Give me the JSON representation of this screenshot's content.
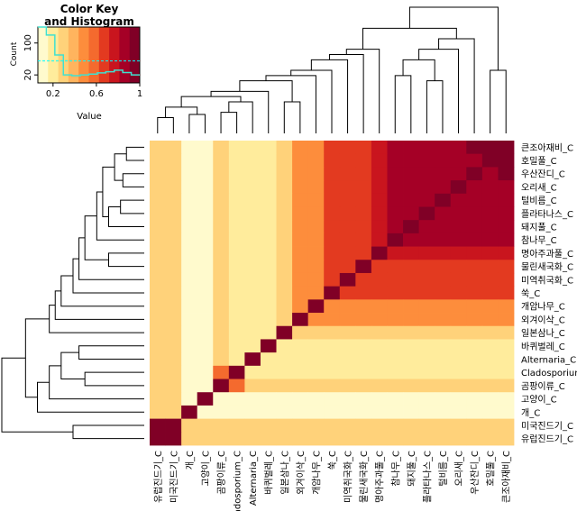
{
  "chart_data": {
    "type": "heatmap",
    "color_key": {
      "title_line1": "Color Key",
      "title_line2": "and Histogram",
      "xlabel": "Value",
      "ylabel": "Count",
      "x_ticks": [
        "0.2",
        "0.6",
        "1"
      ],
      "x_tick_values": [
        0.2,
        0.6,
        1.0
      ],
      "y_ticks": [
        "20",
        "100"
      ],
      "y_tick_values": [
        20,
        100
      ],
      "x_range": [
        0.06,
        1.0
      ],
      "y_range": [
        0,
        140
      ],
      "palette": [
        "#fffacd",
        "#ffec9c",
        "#ffd27a",
        "#ffb45e",
        "#fd8d3c",
        "#f46a2e",
        "#e33a20",
        "#c9151e",
        "#a50026",
        "#800026"
      ],
      "histogram_color": "#40e0d0",
      "histogram_values": [
        140,
        120,
        70,
        20,
        18,
        20,
        22,
        25,
        28,
        32,
        26,
        20
      ],
      "density_line_color": "#00ffff",
      "density_line_value": 55
    },
    "row_labels": [
      "큰조아재비_C",
      "호밀풀_C",
      "우산잔디_C",
      "오리새_C",
      "털비름_C",
      "플라타나스_C",
      "돼지풀_C",
      "참나무_C",
      "명아주과풀_C",
      "물린새국화_C",
      "미역취국화_C",
      "쑥_C",
      "개암나무_C",
      "외겨이삭_C",
      "일본삼나_C",
      "바퀴벌레_C",
      "Alternaria_C",
      "Cladosporium_C",
      "곰팡이류_C",
      "고양이_C",
      "개_C",
      "미국진드기_C",
      "유럽진드기_C"
    ],
    "col_labels": [
      "유럽진드기_C",
      "미국진드기_C",
      "개_C",
      "고양이_C",
      "곰팡이류_C",
      "Cladosporium_C",
      "Alternaria_C",
      "바퀴벌레_C",
      "일본삼나_C",
      "외겨이삭_C",
      "개암나무_C",
      "쑥_C",
      "미역취국화_C",
      "물린새국화_C",
      "명아주과풀_C",
      "참나무_C",
      "돼지풀_C",
      "플라타나스_C",
      "털비름_C",
      "오리새_C",
      "우산잔디_C",
      "호밀풀_C",
      "큰조아재비_C"
    ],
    "values": [
      [
        0.2,
        0.2,
        0.05,
        0.05,
        0.2,
        0.1,
        0.1,
        0.1,
        0.2,
        0.4,
        0.4,
        0.6,
        0.6,
        0.6,
        0.7,
        0.8,
        0.8,
        0.8,
        0.8,
        0.85,
        0.9,
        0.9,
        1.0
      ],
      [
        0.2,
        0.2,
        0.05,
        0.05,
        0.2,
        0.1,
        0.1,
        0.1,
        0.2,
        0.4,
        0.4,
        0.6,
        0.6,
        0.6,
        0.7,
        0.8,
        0.8,
        0.8,
        0.8,
        0.8,
        0.8,
        1.0,
        0.9
      ],
      [
        0.2,
        0.2,
        0.05,
        0.05,
        0.2,
        0.1,
        0.1,
        0.1,
        0.2,
        0.4,
        0.4,
        0.6,
        0.6,
        0.6,
        0.7,
        0.8,
        0.8,
        0.8,
        0.8,
        0.8,
        1.0,
        0.8,
        0.9
      ],
      [
        0.2,
        0.2,
        0.05,
        0.05,
        0.2,
        0.1,
        0.1,
        0.1,
        0.2,
        0.4,
        0.4,
        0.6,
        0.6,
        0.6,
        0.7,
        0.8,
        0.8,
        0.8,
        0.8,
        1.0,
        0.8,
        0.8,
        0.85
      ],
      [
        0.2,
        0.2,
        0.05,
        0.05,
        0.2,
        0.1,
        0.1,
        0.1,
        0.2,
        0.4,
        0.4,
        0.6,
        0.6,
        0.6,
        0.7,
        0.8,
        0.8,
        0.8,
        1.0,
        0.8,
        0.8,
        0.8,
        0.8
      ],
      [
        0.2,
        0.2,
        0.05,
        0.05,
        0.2,
        0.1,
        0.1,
        0.1,
        0.2,
        0.4,
        0.4,
        0.6,
        0.6,
        0.6,
        0.7,
        0.8,
        0.8,
        1.0,
        0.8,
        0.8,
        0.8,
        0.8,
        0.8
      ],
      [
        0.2,
        0.2,
        0.05,
        0.05,
        0.2,
        0.1,
        0.1,
        0.1,
        0.2,
        0.4,
        0.4,
        0.6,
        0.6,
        0.6,
        0.7,
        0.8,
        1.0,
        0.8,
        0.8,
        0.8,
        0.8,
        0.8,
        0.8
      ],
      [
        0.2,
        0.2,
        0.05,
        0.05,
        0.2,
        0.1,
        0.1,
        0.1,
        0.2,
        0.4,
        0.4,
        0.6,
        0.6,
        0.6,
        0.7,
        1.0,
        0.8,
        0.8,
        0.8,
        0.8,
        0.8,
        0.8,
        0.8
      ],
      [
        0.2,
        0.2,
        0.05,
        0.05,
        0.2,
        0.1,
        0.1,
        0.1,
        0.2,
        0.4,
        0.4,
        0.6,
        0.6,
        0.6,
        1.0,
        0.7,
        0.7,
        0.7,
        0.7,
        0.7,
        0.7,
        0.7,
        0.7
      ],
      [
        0.2,
        0.2,
        0.05,
        0.05,
        0.2,
        0.1,
        0.1,
        0.1,
        0.2,
        0.4,
        0.4,
        0.6,
        0.6,
        1.0,
        0.6,
        0.6,
        0.6,
        0.6,
        0.6,
        0.6,
        0.6,
        0.6,
        0.6
      ],
      [
        0.2,
        0.2,
        0.05,
        0.05,
        0.2,
        0.1,
        0.1,
        0.1,
        0.2,
        0.4,
        0.4,
        0.6,
        1.0,
        0.6,
        0.6,
        0.6,
        0.6,
        0.6,
        0.6,
        0.6,
        0.6,
        0.6,
        0.6
      ],
      [
        0.2,
        0.2,
        0.05,
        0.05,
        0.2,
        0.1,
        0.1,
        0.1,
        0.2,
        0.4,
        0.4,
        1.0,
        0.6,
        0.6,
        0.6,
        0.6,
        0.6,
        0.6,
        0.6,
        0.6,
        0.6,
        0.6,
        0.6
      ],
      [
        0.2,
        0.2,
        0.05,
        0.05,
        0.2,
        0.1,
        0.1,
        0.1,
        0.2,
        0.4,
        1.0,
        0.4,
        0.4,
        0.4,
        0.4,
        0.4,
        0.4,
        0.4,
        0.4,
        0.4,
        0.4,
        0.4,
        0.4
      ],
      [
        0.2,
        0.2,
        0.05,
        0.05,
        0.2,
        0.1,
        0.1,
        0.1,
        0.2,
        1.0,
        0.4,
        0.4,
        0.4,
        0.4,
        0.4,
        0.4,
        0.4,
        0.4,
        0.4,
        0.4,
        0.4,
        0.4,
        0.4
      ],
      [
        0.2,
        0.2,
        0.05,
        0.05,
        0.2,
        0.1,
        0.1,
        0.1,
        1.0,
        0.2,
        0.2,
        0.2,
        0.2,
        0.2,
        0.2,
        0.2,
        0.2,
        0.2,
        0.2,
        0.2,
        0.2,
        0.2,
        0.2
      ],
      [
        0.2,
        0.2,
        0.05,
        0.05,
        0.2,
        0.1,
        0.1,
        1.0,
        0.1,
        0.1,
        0.1,
        0.1,
        0.1,
        0.1,
        0.1,
        0.1,
        0.1,
        0.1,
        0.1,
        0.1,
        0.1,
        0.1,
        0.1
      ],
      [
        0.2,
        0.2,
        0.05,
        0.05,
        0.2,
        0.1,
        1.0,
        0.1,
        0.1,
        0.1,
        0.1,
        0.1,
        0.1,
        0.1,
        0.1,
        0.1,
        0.1,
        0.1,
        0.1,
        0.1,
        0.1,
        0.1,
        0.1
      ],
      [
        0.2,
        0.2,
        0.05,
        0.05,
        0.5,
        1.0,
        0.1,
        0.1,
        0.1,
        0.1,
        0.1,
        0.1,
        0.1,
        0.1,
        0.1,
        0.1,
        0.1,
        0.1,
        0.1,
        0.1,
        0.1,
        0.1,
        0.1
      ],
      [
        0.2,
        0.2,
        0.05,
        0.05,
        1.0,
        0.5,
        0.2,
        0.2,
        0.2,
        0.2,
        0.2,
        0.2,
        0.2,
        0.2,
        0.2,
        0.2,
        0.2,
        0.2,
        0.2,
        0.2,
        0.2,
        0.2,
        0.2
      ],
      [
        0.2,
        0.2,
        0.05,
        1.0,
        0.05,
        0.05,
        0.05,
        0.05,
        0.05,
        0.05,
        0.05,
        0.05,
        0.05,
        0.05,
        0.05,
        0.05,
        0.05,
        0.05,
        0.05,
        0.05,
        0.05,
        0.05,
        0.05
      ],
      [
        0.2,
        0.2,
        1.0,
        0.05,
        0.05,
        0.05,
        0.05,
        0.05,
        0.05,
        0.05,
        0.05,
        0.05,
        0.05,
        0.05,
        0.05,
        0.05,
        0.05,
        0.05,
        0.05,
        0.05,
        0.05,
        0.05,
        0.05
      ],
      [
        0.9,
        1.0,
        0.2,
        0.2,
        0.2,
        0.2,
        0.2,
        0.2,
        0.2,
        0.2,
        0.2,
        0.2,
        0.2,
        0.2,
        0.2,
        0.2,
        0.2,
        0.2,
        0.2,
        0.2,
        0.2,
        0.2,
        0.2
      ],
      [
        1.0,
        0.9,
        0.2,
        0.2,
        0.2,
        0.2,
        0.2,
        0.2,
        0.2,
        0.2,
        0.2,
        0.2,
        0.2,
        0.2,
        0.2,
        0.2,
        0.2,
        0.2,
        0.2,
        0.2,
        0.2,
        0.2,
        0.2
      ]
    ]
  }
}
